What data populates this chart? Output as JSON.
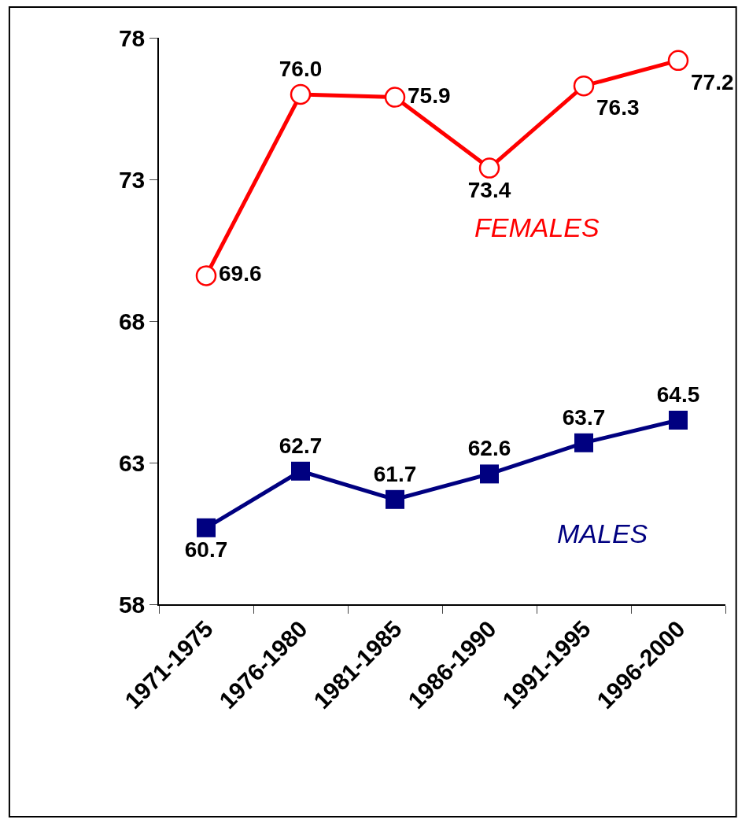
{
  "chart_data": {
    "type": "line",
    "categories": [
      "1971-1975",
      "1976-1980",
      "1981-1985",
      "1986-1990",
      "1991-1995",
      "1996-2000"
    ],
    "series": [
      {
        "name": "FEMALES",
        "color": "#ff0000",
        "marker": "circle",
        "values": [
          69.6,
          76.0,
          75.9,
          73.4,
          76.3,
          77.2
        ],
        "value_labels": [
          "69.6",
          "76.0",
          "75.9",
          "73.4",
          "76.3",
          "77.2"
        ]
      },
      {
        "name": "MALES",
        "color": "#000080",
        "marker": "square",
        "values": [
          60.7,
          62.7,
          61.7,
          62.6,
          63.7,
          64.5
        ],
        "value_labels": [
          "60.7",
          "62.7",
          "61.7",
          "62.6",
          "63.7",
          "64.5"
        ]
      }
    ],
    "ylim": [
      58,
      78
    ],
    "yticks": [
      58,
      63,
      68,
      73,
      78
    ],
    "legend": false
  }
}
